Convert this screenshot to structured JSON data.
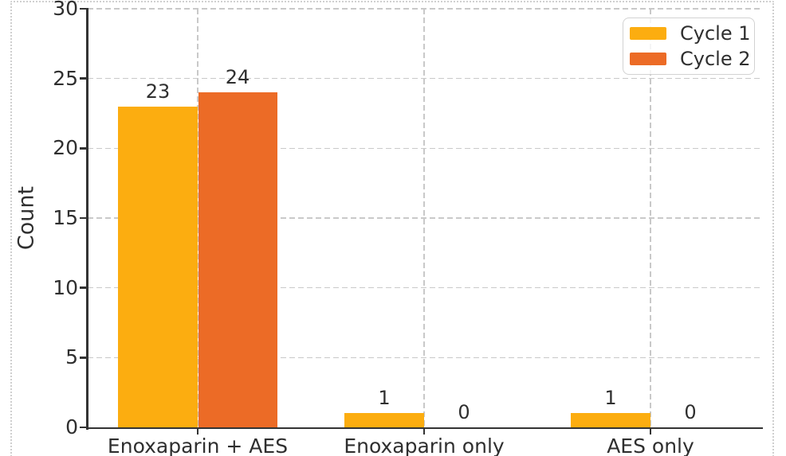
{
  "chart_data": {
    "type": "bar",
    "title": "",
    "xlabel": "",
    "ylabel": "Count",
    "categories": [
      "Enoxaparin + AES",
      "Enoxaparin only",
      "AES only"
    ],
    "series": [
      {
        "name": "Cycle 1",
        "color": "#FCAD10",
        "values": [
          23,
          1,
          1
        ]
      },
      {
        "name": "Cycle 2",
        "color": "#EC6B26",
        "values": [
          24,
          0,
          0
        ]
      }
    ],
    "bar_value_labels": {
      "cycle_1": [
        23,
        1,
        1
      ],
      "cycle_2": [
        24,
        0,
        0
      ]
    },
    "ylim": [
      0,
      30
    ],
    "yticks": [
      0,
      5,
      10,
      15,
      20,
      25,
      30
    ],
    "grid": "dashed-both-axes",
    "legend_position": "upper-right",
    "colors": {
      "cycle_1": "#FCAD10",
      "cycle_2": "#EC6B26",
      "axis": "#333333",
      "tick_text": "#2f2f2f",
      "gridline": "#c9c9c9",
      "figure_border_dotted": "#cfcfcf",
      "legend_border": "#d2d2d2"
    }
  }
}
